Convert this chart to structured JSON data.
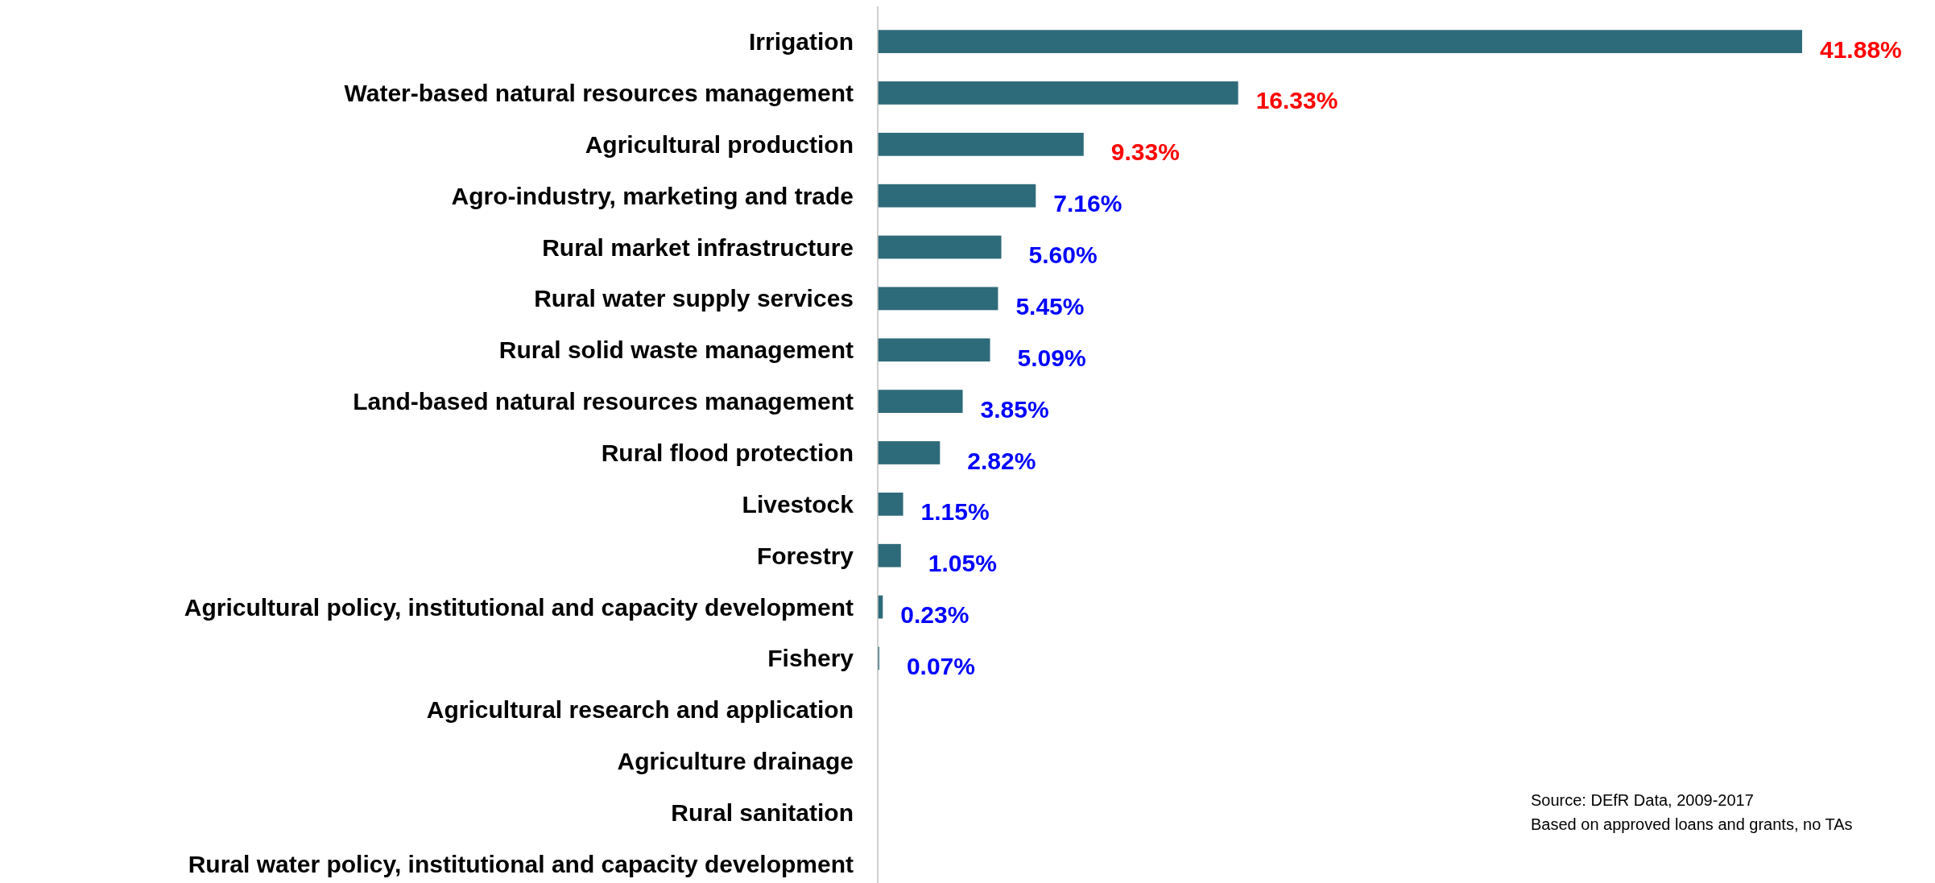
{
  "chart_data": {
    "type": "bar",
    "orientation": "horizontal",
    "categories": [
      "Irrigation",
      "Water-based natural resources management",
      "Agricultural production",
      "Agro-industry, marketing and trade",
      "Rural market infrastructure",
      "Rural water supply services",
      "Rural solid waste management",
      "Land-based natural resources management",
      "Rural flood protection",
      "Livestock",
      "Forestry",
      "Agricultural policy, institutional and capacity development",
      "Fishery",
      "Agricultural research and application",
      "Agriculture drainage",
      "Rural sanitation",
      "Rural water policy, institutional and capacity development"
    ],
    "values": [
      41.88,
      16.33,
      9.33,
      7.16,
      5.6,
      5.45,
      5.09,
      3.85,
      2.82,
      1.15,
      1.05,
      0.23,
      0.07,
      0,
      0,
      0,
      0
    ],
    "value_labels": [
      "41.88%",
      "16.33%",
      "9.33%",
      "7.16%",
      "5.60%",
      "5.45%",
      "5.09%",
      "3.85%",
      "2.82%",
      "1.15%",
      "1.05%",
      "0.23%",
      "0.07%",
      null,
      null,
      null,
      null
    ],
    "color": "#2e6b7a",
    "annotations": [
      "Source: DEfR Data, 2009-2017",
      "Based on approved loans and grants, no TAs"
    ]
  }
}
